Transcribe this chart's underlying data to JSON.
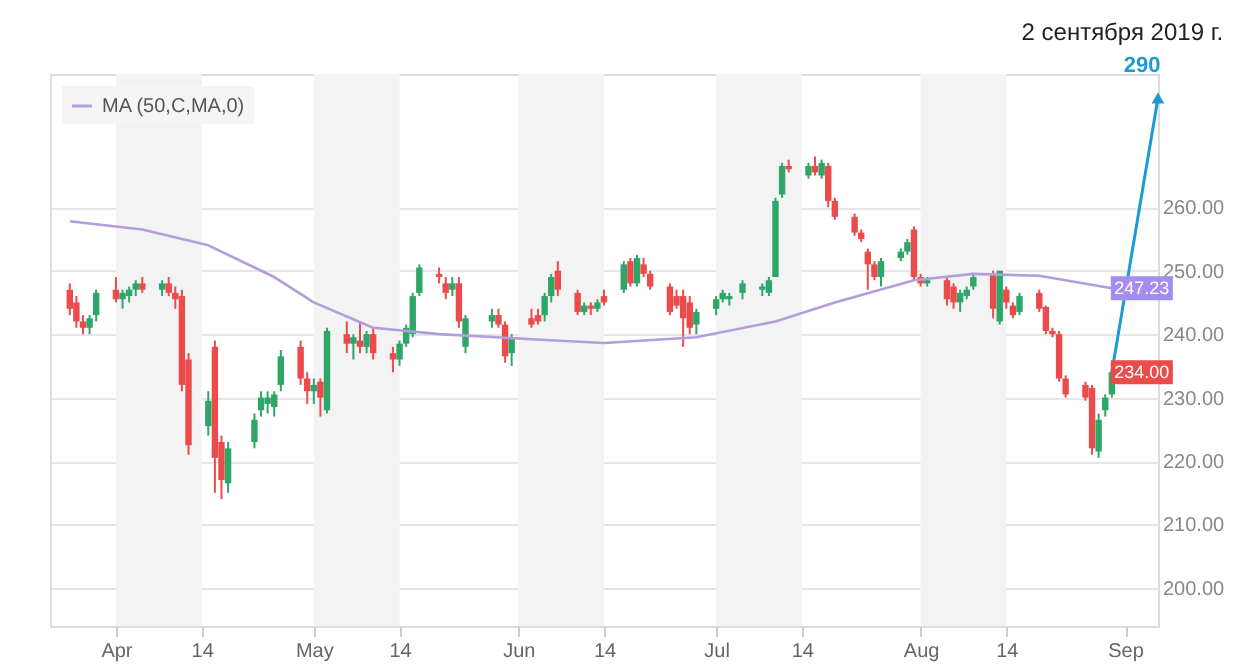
{
  "chart_data": {
    "type": "candlestick",
    "title": "2 сентября 2019 г.",
    "xlim": [
      "2019-03-22",
      "2019-09-06"
    ],
    "xticks": [
      {
        "value": "2019-04-01",
        "label": "Apr"
      },
      {
        "value": "2019-04-14",
        "label": "14"
      },
      {
        "value": "2019-05-01",
        "label": "May"
      },
      {
        "value": "2019-05-14",
        "label": "14"
      },
      {
        "value": "2019-06-01",
        "label": "Jun"
      },
      {
        "value": "2019-06-14",
        "label": "14"
      },
      {
        "value": "2019-07-01",
        "label": "Jul"
      },
      {
        "value": "2019-07-14",
        "label": "14"
      },
      {
        "value": "2019-08-01",
        "label": "Aug"
      },
      {
        "value": "2019-08-14",
        "label": "14"
      },
      {
        "value": "2019-09-01",
        "label": "Sep"
      }
    ],
    "ylim": [
      194,
      281
    ],
    "yticks": [
      {
        "value": 200,
        "label": "200.00"
      },
      {
        "value": 210,
        "label": "210.00"
      },
      {
        "value": 220,
        "label": "220.00"
      },
      {
        "value": 230,
        "label": "230.00"
      },
      {
        "value": 240,
        "label": "240.00"
      },
      {
        "value": 250,
        "label": "250.00"
      },
      {
        "value": 260,
        "label": "260.00"
      }
    ],
    "grid": "y",
    "legend": "top left",
    "bands": [
      {
        "axis": "x",
        "from": "2019-04-01",
        "to": "2019-04-14",
        "color": "#f3f3f3"
      },
      {
        "axis": "x",
        "from": "2019-05-01",
        "to": "2019-05-14",
        "color": "#f3f3f3"
      },
      {
        "axis": "x",
        "from": "2019-06-01",
        "to": "2019-06-14",
        "color": "#f3f3f3"
      },
      {
        "axis": "x",
        "from": "2019-07-01",
        "to": "2019-07-14",
        "color": "#f3f3f3"
      },
      {
        "axis": "x",
        "from": "2019-08-01",
        "to": "2019-08-14",
        "color": "#f3f3f3"
      }
    ],
    "annotations": [
      {
        "text": "247.23",
        "x": "2019-08-30",
        "y": 247.23
      },
      {
        "text": "234.00",
        "x": "2019-08-30",
        "y": 234
      },
      "290"
    ],
    "series": [
      {
        "type": "candlestick",
        "x": [
          "2019-03-25",
          "2019-03-26",
          "2019-03-27",
          "2019-03-28",
          "2019-03-29",
          "2019-04-01",
          "2019-04-02",
          "2019-04-03",
          "2019-04-04",
          "2019-04-05",
          "2019-04-08",
          "2019-04-09",
          "2019-04-10",
          "2019-04-11",
          "2019-04-12",
          "2019-04-15",
          "2019-04-16",
          "2019-04-17",
          "2019-04-18",
          "2019-04-22",
          "2019-04-23",
          "2019-04-24",
          "2019-04-25",
          "2019-04-26",
          "2019-04-29",
          "2019-04-30",
          "2019-05-01",
          "2019-05-02",
          "2019-05-03",
          "2019-05-06",
          "2019-05-07",
          "2019-05-08",
          "2019-05-09",
          "2019-05-10",
          "2019-05-13",
          "2019-05-14",
          "2019-05-15",
          "2019-05-16",
          "2019-05-17",
          "2019-05-20",
          "2019-05-21",
          "2019-05-22",
          "2019-05-23",
          "2019-05-24",
          "2019-05-28",
          "2019-05-29",
          "2019-05-30",
          "2019-05-31",
          "2019-06-03",
          "2019-06-04",
          "2019-06-05",
          "2019-06-06",
          "2019-06-07",
          "2019-06-10",
          "2019-06-11",
          "2019-06-12",
          "2019-06-13",
          "2019-06-14",
          "2019-06-17",
          "2019-06-18",
          "2019-06-19",
          "2019-06-20",
          "2019-06-21",
          "2019-06-24",
          "2019-06-25",
          "2019-06-26",
          "2019-06-27",
          "2019-06-28",
          "2019-07-01",
          "2019-07-02",
          "2019-07-03",
          "2019-07-05",
          "2019-07-08",
          "2019-07-09",
          "2019-07-10",
          "2019-07-11",
          "2019-07-12",
          "2019-07-15",
          "2019-07-16",
          "2019-07-17",
          "2019-07-18",
          "2019-07-19",
          "2019-07-22",
          "2019-07-23",
          "2019-07-24",
          "2019-07-25",
          "2019-07-26",
          "2019-07-29",
          "2019-07-30",
          "2019-07-31",
          "2019-08-01",
          "2019-08-02",
          "2019-08-05",
          "2019-08-06",
          "2019-08-07",
          "2019-08-08",
          "2019-08-09",
          "2019-08-12",
          "2019-08-13",
          "2019-08-14",
          "2019-08-15",
          "2019-08-16",
          "2019-08-19",
          "2019-08-20",
          "2019-08-21",
          "2019-08-22",
          "2019-08-23",
          "2019-08-26",
          "2019-08-27",
          "2019-08-28",
          "2019-08-29",
          "2019-08-30"
        ],
        "ohlc": [
          [
            247,
            248,
            243,
            244
          ],
          [
            245,
            246,
            241,
            242
          ],
          [
            242,
            243,
            240,
            241
          ],
          [
            241,
            243,
            240,
            242.5
          ],
          [
            243,
            247,
            242,
            246.5
          ],
          [
            247,
            249,
            245,
            245.5
          ],
          [
            245.5,
            247,
            244,
            246.5
          ],
          [
            246,
            247.5,
            245,
            247
          ],
          [
            247,
            248.5,
            246,
            248
          ],
          [
            248,
            249,
            246.5,
            247
          ],
          [
            247,
            248.5,
            246,
            248
          ],
          [
            248,
            249,
            246,
            246.5
          ],
          [
            246.5,
            247.5,
            244,
            245.5
          ],
          [
            246,
            247,
            231,
            232
          ],
          [
            236,
            237,
            221,
            222.5
          ],
          [
            225.5,
            231,
            224,
            229.5
          ],
          [
            238,
            239,
            215,
            220.5
          ],
          [
            223,
            224,
            214,
            217
          ],
          [
            216.5,
            223,
            215,
            222
          ],
          [
            223,
            227.5,
            222,
            226.5
          ],
          [
            228,
            231,
            227,
            230
          ],
          [
            229,
            231,
            227.5,
            230
          ],
          [
            228.5,
            231,
            227,
            230.5
          ],
          [
            232,
            237.5,
            231,
            236.5
          ],
          [
            238,
            239,
            232,
            233
          ],
          [
            233,
            234,
            229,
            231
          ],
          [
            231,
            233,
            229,
            232
          ],
          [
            232.5,
            233,
            227,
            230
          ],
          [
            228,
            241,
            227.5,
            240.5
          ],
          [
            240,
            242,
            237,
            238.5
          ],
          [
            238.5,
            240,
            236,
            239.5
          ],
          [
            239,
            242,
            237,
            238
          ],
          [
            238,
            240.5,
            237,
            240
          ],
          [
            240,
            241,
            236,
            237
          ],
          [
            237,
            238,
            234,
            236
          ],
          [
            236,
            239,
            235,
            238.5
          ],
          [
            238.5,
            241.5,
            238,
            241
          ],
          [
            240,
            246.5,
            239.5,
            246
          ],
          [
            246.5,
            251,
            246,
            250.5
          ],
          [
            249.5,
            250.5,
            248,
            249
          ],
          [
            248,
            249,
            245.5,
            246.5
          ],
          [
            247,
            249,
            246,
            248
          ],
          [
            248,
            249,
            241,
            242
          ],
          [
            238,
            243,
            237,
            242.5
          ],
          [
            242,
            244,
            241,
            243
          ],
          [
            243,
            244,
            241,
            241.5
          ],
          [
            241.5,
            242,
            235.5,
            236.5
          ],
          [
            237,
            240,
            235,
            239.5
          ],
          [
            242.5,
            244,
            241,
            241.5
          ],
          [
            243,
            244,
            241.5,
            242
          ],
          [
            243,
            246.5,
            242,
            246
          ],
          [
            246,
            249.5,
            245,
            249
          ],
          [
            250,
            251.5,
            246,
            247
          ],
          [
            246.5,
            247,
            243,
            243.5
          ],
          [
            243.5,
            245,
            243,
            244.5
          ],
          [
            244.5,
            245,
            243,
            244
          ],
          [
            244,
            245.5,
            243.5,
            245
          ],
          [
            246,
            247,
            244.5,
            245
          ],
          [
            247,
            251.5,
            246.5,
            251
          ],
          [
            251.5,
            252,
            247.5,
            248
          ],
          [
            248,
            252.5,
            247.5,
            252
          ],
          [
            251,
            252,
            249,
            249.5
          ],
          [
            249.5,
            250,
            247,
            247.5
          ],
          [
            247.5,
            248,
            243,
            243.5
          ],
          [
            246,
            247,
            244,
            244.5
          ],
          [
            246,
            247,
            238,
            242.5
          ],
          [
            245,
            246,
            240,
            241
          ],
          [
            241.5,
            244,
            240,
            243.5
          ],
          [
            244,
            246,
            243,
            245.5
          ],
          [
            245.5,
            247,
            245,
            246.5
          ],
          [
            245.5,
            246.5,
            244.5,
            246
          ],
          [
            246.5,
            248.5,
            245.5,
            248
          ],
          [
            247,
            248,
            246,
            247.5
          ],
          [
            246.5,
            249,
            246,
            248.5
          ],
          [
            249,
            261.5,
            249,
            261
          ],
          [
            262,
            267,
            261.5,
            266.5
          ],
          [
            266.5,
            267.5,
            265.5,
            266
          ],
          [
            265,
            267,
            264.5,
            266.5
          ],
          [
            266.5,
            268,
            265,
            265.5
          ],
          [
            265,
            267.5,
            264.5,
            267
          ],
          [
            266.5,
            267,
            260,
            261
          ],
          [
            261,
            261.5,
            258,
            258.5
          ],
          [
            258.5,
            259,
            255.5,
            256
          ],
          [
            256,
            256.5,
            254.5,
            255
          ],
          [
            253,
            253.5,
            247,
            251
          ],
          [
            251,
            251.5,
            248.5,
            249
          ],
          [
            249,
            252,
            247.5,
            251.5
          ],
          [
            252,
            253.5,
            251.5,
            253
          ],
          [
            253,
            255,
            252.5,
            254.5
          ],
          [
            256.5,
            257,
            248.5,
            249
          ],
          [
            249,
            249.5,
            247.5,
            248
          ],
          [
            248,
            249,
            247.5,
            248.5
          ],
          [
            248.5,
            249,
            244.5,
            245.5
          ],
          [
            247.5,
            248,
            244,
            245
          ],
          [
            245,
            247,
            243.5,
            246.5
          ],
          [
            246,
            247.5,
            245.5,
            247
          ],
          [
            247.5,
            249.5,
            247,
            249
          ],
          [
            249.5,
            250,
            242.5,
            244
          ],
          [
            242,
            250,
            241.5,
            250
          ],
          [
            247,
            247.5,
            244,
            245
          ],
          [
            244.5,
            245,
            242.5,
            243
          ],
          [
            243.5,
            246.5,
            243,
            246
          ],
          [
            246.5,
            247,
            243.5,
            244
          ],
          [
            244.3,
            244.5,
            240,
            240.5
          ],
          [
            240.5,
            241,
            239.5,
            240
          ],
          [
            240,
            240.5,
            232.5,
            233
          ],
          [
            233,
            233.5,
            230,
            230.5
          ],
          [
            232,
            232.5,
            229.5,
            230
          ],
          [
            231.5,
            232,
            221,
            222
          ],
          [
            221.5,
            227.5,
            220.5,
            226.5
          ],
          [
            228,
            230.5,
            227,
            230
          ],
          [
            230.5,
            234.5,
            230,
            234
          ]
        ],
        "colors": [
          "#ec4b4b",
          "#ec4b4b",
          "#ec4b4b",
          "#2ea66a",
          "#2ea66a",
          "#ec4b4b",
          "#2ea66a",
          "#2ea66a",
          "#2ea66a",
          "#ec4b4b",
          "#2ea66a",
          "#ec4b4b",
          "#ec4b4b",
          "#ec4b4b",
          "#ec4b4b",
          "#2ea66a",
          "#ec4b4b",
          "#ec4b4b",
          "#2ea66a",
          "#2ea66a",
          "#2ea66a",
          "#2ea66a",
          "#2ea66a",
          "#2ea66a",
          "#ec4b4b",
          "#ec4b4b",
          "#2ea66a",
          "#ec4b4b",
          "#2ea66a",
          "#ec4b4b",
          "#2ea66a",
          "#ec4b4b",
          "#2ea66a",
          "#ec4b4b",
          "#ec4b4b",
          "#2ea66a",
          "#2ea66a",
          "#2ea66a",
          "#2ea66a",
          "#ec4b4b",
          "#ec4b4b",
          "#2ea66a",
          "#ec4b4b",
          "#2ea66a",
          "#2ea66a",
          "#ec4b4b",
          "#ec4b4b",
          "#2ea66a",
          "#ec4b4b",
          "#ec4b4b",
          "#2ea66a",
          "#2ea66a",
          "#ec4b4b",
          "#ec4b4b",
          "#2ea66a",
          "#ec4b4b",
          "#2ea66a",
          "#ec4b4b",
          "#2ea66a",
          "#ec4b4b",
          "#2ea66a",
          "#ec4b4b",
          "#ec4b4b",
          "#ec4b4b",
          "#ec4b4b",
          "#ec4b4b",
          "#ec4b4b",
          "#2ea66a",
          "#2ea66a",
          "#2ea66a",
          "#2ea66a",
          "#2ea66a",
          "#2ea66a",
          "#2ea66a",
          "#2ea66a",
          "#2ea66a",
          "#ec4b4b",
          "#2ea66a",
          "#ec4b4b",
          "#2ea66a",
          "#ec4b4b",
          "#ec4b4b",
          "#ec4b4b",
          "#ec4b4b",
          "#ec4b4b",
          "#ec4b4b",
          "#2ea66a",
          "#2ea66a",
          "#2ea66a",
          "#ec4b4b",
          "#ec4b4b",
          "#2ea66a",
          "#ec4b4b",
          "#ec4b4b",
          "#2ea66a",
          "#2ea66a",
          "#2ea66a",
          "#ec4b4b",
          "#2ea66a",
          "#ec4b4b",
          "#ec4b4b",
          "#2ea66a",
          "#ec4b4b",
          "#ec4b4b",
          "#ec4b4b",
          "#ec4b4b",
          "#ec4b4b",
          "#ec4b4b",
          "#ec4b4b",
          "#2ea66a",
          "#2ea66a",
          "#2ea66a"
        ]
      },
      {
        "type": "line",
        "name": "MA (50,C,MA,0)",
        "color": "#b39ddb",
        "x": [
          "2019-03-25",
          "2019-04-05",
          "2019-04-15",
          "2019-04-25",
          "2019-05-01",
          "2019-05-10",
          "2019-05-20",
          "2019-06-03",
          "2019-06-14",
          "2019-06-28",
          "2019-07-10",
          "2019-07-19",
          "2019-07-31",
          "2019-08-09",
          "2019-08-19",
          "2019-08-30"
        ],
        "values": [
          257.8,
          256.5,
          254,
          249,
          245,
          241,
          240,
          239.2,
          238.6,
          239.5,
          242,
          245,
          248.5,
          249.5,
          249.2,
          247.23
        ]
      }
    ]
  }
}
